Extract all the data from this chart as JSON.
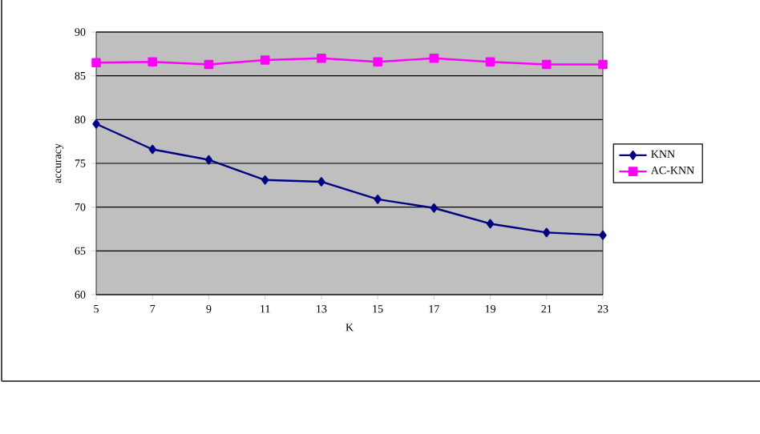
{
  "chart_data": {
    "type": "line",
    "xlabel": "K",
    "ylabel": "accuracy",
    "x": [
      5,
      7,
      9,
      11,
      13,
      15,
      17,
      19,
      21,
      23
    ],
    "xlim": [
      5,
      23
    ],
    "xticks": [
      5,
      7,
      9,
      11,
      13,
      15,
      17,
      19,
      21,
      23
    ],
    "ylim": [
      60,
      90
    ],
    "yticks": [
      60,
      65,
      70,
      75,
      80,
      85,
      90
    ],
    "grid": "y",
    "legend": "right",
    "line_style": "solid",
    "series": [
      {
        "name": "KNN",
        "color": "#000080",
        "marker": "diamond",
        "values": [
          79.5,
          76.6,
          75.4,
          73.1,
          72.9,
          70.9,
          69.9,
          68.1,
          67.1,
          66.8
        ]
      },
      {
        "name": "AC-KNN",
        "color": "#ff00ff",
        "marker": "square",
        "values": [
          86.5,
          86.6,
          86.3,
          86.8,
          87.0,
          86.6,
          87.0,
          86.6,
          86.3,
          86.3
        ]
      }
    ]
  }
}
